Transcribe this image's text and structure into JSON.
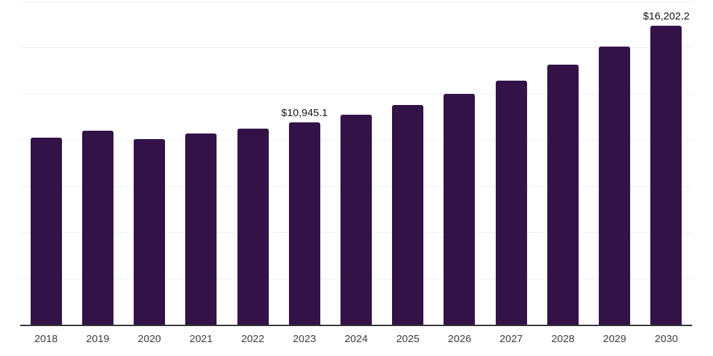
{
  "chart_data": {
    "type": "bar",
    "title": "",
    "xlabel": "",
    "ylabel": "",
    "categories": [
      "2018",
      "2019",
      "2020",
      "2021",
      "2022",
      "2023",
      "2024",
      "2025",
      "2026",
      "2027",
      "2028",
      "2029",
      "2030"
    ],
    "values": [
      10120,
      10510,
      10040,
      10340,
      10630,
      10945.1,
      11350,
      11880,
      12480,
      13220,
      14070,
      15070,
      16202.2
    ],
    "point_labels": {
      "2023": "$10,945.1",
      "2030": "$16,202.2"
    },
    "ylim": [
      0,
      17500
    ],
    "gridline_step": 2500,
    "gridline_count": 7,
    "grid": "horizontal-only",
    "y_tick_labels_visible": false,
    "legend": "none",
    "colors": {
      "bar": "#331347",
      "gridline": "#f0f0f0",
      "axis_line": "#333333",
      "x_tick_label": "#3d3d3d",
      "data_label": "#141414",
      "background": "#ffffff"
    }
  }
}
